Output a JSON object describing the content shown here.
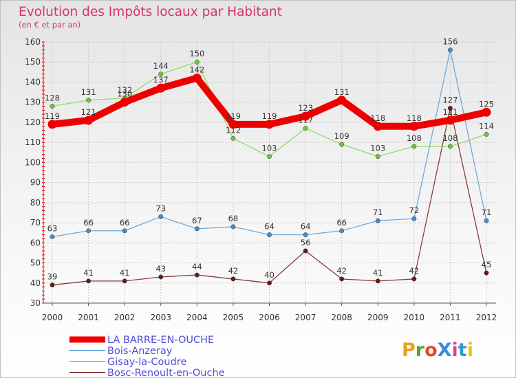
{
  "chart_data": {
    "type": "line",
    "title": "Evolution des Impôts locaux par Habitant",
    "subtitle": "(en € et par an)",
    "xlabel": "",
    "ylabel": "",
    "ylim": [
      30,
      160
    ],
    "yticks": [
      30,
      40,
      50,
      60,
      70,
      80,
      90,
      100,
      110,
      120,
      130,
      140,
      150,
      160
    ],
    "categories": [
      "2000",
      "2001",
      "2002",
      "2003",
      "2004",
      "2005",
      "2006",
      "2007",
      "2008",
      "2009",
      "2010",
      "2011",
      "2012"
    ],
    "grid": true,
    "legend_position": "bottom-left",
    "series": [
      {
        "name": "LA BARRE-EN-OUCHE",
        "color": "#ee0000",
        "marker": "#ee0000",
        "emphasis": "thick",
        "values": [
          119,
          121,
          130,
          137,
          142,
          119,
          119,
          123,
          131,
          118,
          118,
          121,
          125
        ]
      },
      {
        "name": "Bois-Anzeray",
        "color": "#6fa8d8",
        "marker": "#3f8fd0",
        "emphasis": "thin",
        "values": [
          63,
          66,
          66,
          73,
          67,
          68,
          64,
          64,
          66,
          71,
          72,
          156,
          71
        ]
      },
      {
        "name": "Gisay-la-Coudre",
        "color": "#90dc64",
        "marker": "#66cc33",
        "emphasis": "thin",
        "values": [
          128,
          131,
          132,
          144,
          150,
          112,
          103,
          117,
          109,
          103,
          108,
          108,
          114
        ]
      },
      {
        "name": "Bosc-Renoult-en-Ouche",
        "color": "#8b3a3a",
        "marker": "#6a1a1a",
        "emphasis": "thin",
        "values": [
          39,
          41,
          41,
          43,
          44,
          42,
          40,
          56,
          42,
          41,
          42,
          127,
          45
        ]
      }
    ]
  },
  "logo": {
    "text": "ProXiti",
    "colors": [
      "#e8a21c",
      "#58a52e",
      "#e04a2a",
      "#3c8ad8",
      "#d24a8a",
      "#2e9ad0",
      "#e8c21c"
    ]
  }
}
